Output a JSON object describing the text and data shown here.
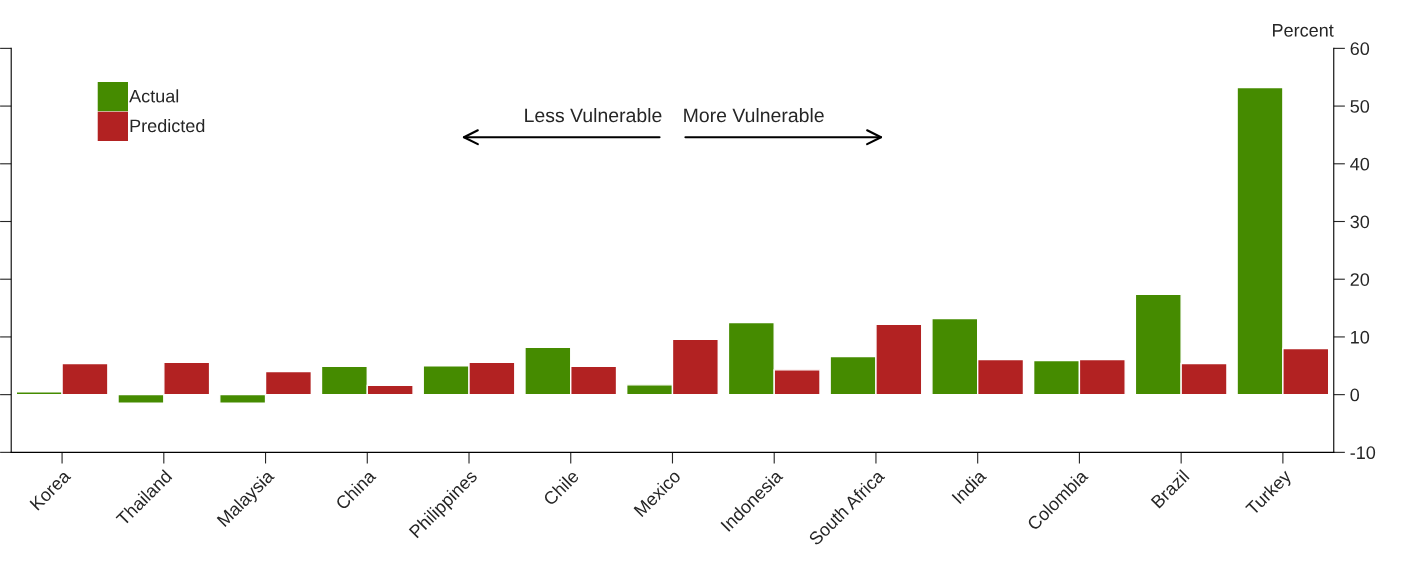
{
  "chart_data": {
    "type": "bar",
    "ylabel": "Percent",
    "categories": [
      "Korea",
      "Thailand",
      "Malaysia",
      "China",
      "Philippines",
      "Chile",
      "Mexico",
      "Indonesia",
      "South Africa",
      "India",
      "Colombia",
      "Brazil",
      "Turkey"
    ],
    "series": [
      {
        "name": "Actual",
        "color": "#458b00",
        "values": [
          0.5,
          -1.5,
          -1.5,
          4.9,
          5.0,
          8.2,
          1.7,
          12.5,
          6.6,
          13.2,
          5.9,
          17.4,
          53.2
        ]
      },
      {
        "name": "Predicted",
        "color": "#b22222",
        "values": [
          5.4,
          5.6,
          4.0,
          1.6,
          5.6,
          4.9,
          9.6,
          4.3,
          12.2,
          6.1,
          6.1,
          5.4,
          8.0
        ]
      }
    ],
    "ylim": [
      -10,
      60
    ],
    "yticks": [
      -10,
      0,
      10,
      20,
      30,
      40,
      50,
      60
    ],
    "annotations": [
      "Less Vulnerable",
      "More Vulnerable"
    ],
    "legend": "top left",
    "grid": false
  }
}
